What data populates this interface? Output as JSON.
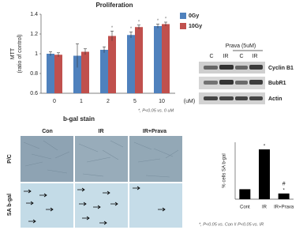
{
  "chart_data": [
    {
      "type": "bar",
      "title": "Proliferation",
      "y_label": [
        "MTT",
        "(ratio of control)"
      ],
      "x_label": "(uM)",
      "categories": [
        "0",
        "1",
        "2",
        "5",
        "10"
      ],
      "series": [
        {
          "name": "0Gy",
          "color": "#4f81bd",
          "values": [
            1.0,
            0.98,
            1.04,
            1.19,
            1.28
          ],
          "errors": [
            0.02,
            0.12,
            0.03,
            0.03,
            0.02
          ],
          "markers": [
            null,
            null,
            null,
            "*",
            "*"
          ]
        },
        {
          "name": "10Gy",
          "color": "#c0504d",
          "values": [
            0.99,
            1.02,
            1.18,
            1.27,
            1.3
          ],
          "errors": [
            0.02,
            0.03,
            0.05,
            0.02,
            0.02
          ],
          "markers": [
            null,
            null,
            "*",
            "*",
            "*"
          ]
        }
      ],
      "ylim": [
        0.6,
        1.4
      ],
      "yticks": [
        0.6,
        0.8,
        1,
        1.2,
        1.4
      ],
      "legend": "right",
      "note": "*, P<0.05 vs. 0 uM"
    },
    {
      "type": "bar",
      "y_label": "% cells SA b-gal",
      "categories": [
        "Cont",
        "IR",
        "IR+Prava"
      ],
      "values": [
        14,
        70,
        8
      ],
      "color": "#000000",
      "significance_vs_con": [
        null,
        "*",
        "*"
      ],
      "significance_vs_ir": [
        null,
        null,
        "#"
      ],
      "ylim": [
        0,
        80
      ],
      "note": "*, P<0.05 vs. Con # P<0.05 vs. IR"
    }
  ],
  "blot": {
    "treatment": "Prava (5uM)",
    "lanes": [
      "C",
      "IR",
      "C",
      "IR"
    ],
    "proteins": [
      "Cyclin B1",
      "BubR1",
      "Actin"
    ]
  },
  "stain": {
    "title": "b-gal stain",
    "columns": [
      "Con",
      "IR",
      "IR+Prava"
    ],
    "rows": [
      "P/C",
      "SA b-gal"
    ]
  }
}
